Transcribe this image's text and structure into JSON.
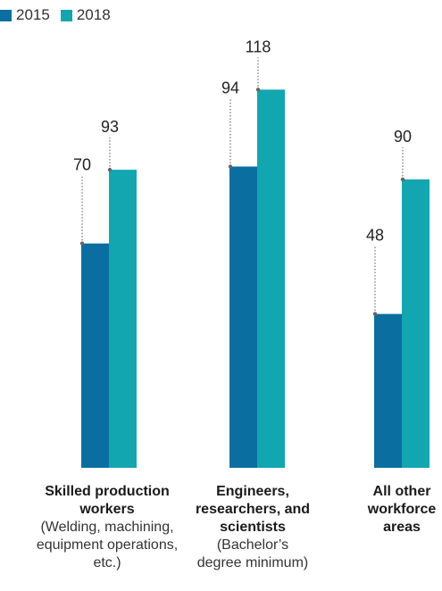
{
  "chart_data": {
    "type": "bar",
    "legend_position": "top-left",
    "grid": false,
    "ylim": [
      0,
      130
    ],
    "series": [
      {
        "name": "2015",
        "color": "#0a6fa0",
        "values": [
          70,
          94,
          48
        ]
      },
      {
        "name": "2018",
        "color": "#12a6b1",
        "values": [
          93,
          118,
          90
        ]
      }
    ],
    "categories": [
      {
        "title": "Skilled production workers",
        "subtitle": "(Welding, machining, equipment operations, etc.)"
      },
      {
        "title": "Engineers, researchers, and scientists",
        "subtitle": "(Bachelor’s degree minimum)"
      },
      {
        "title": "All other workforce areas",
        "subtitle": ""
      }
    ]
  }
}
